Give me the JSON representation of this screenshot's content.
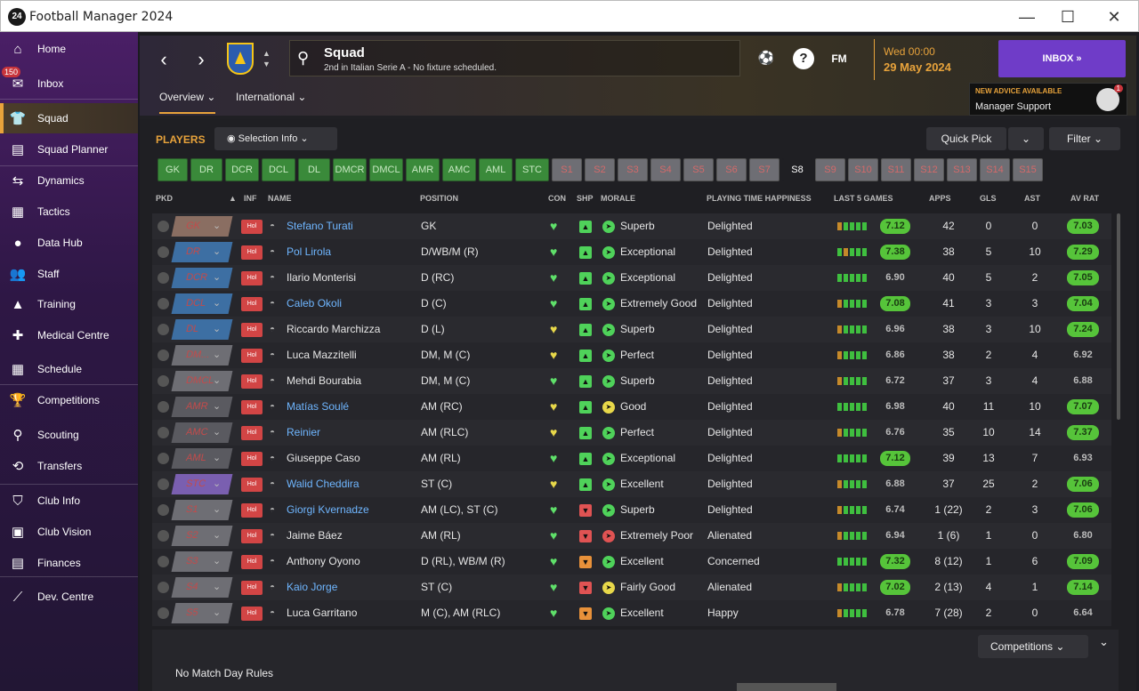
{
  "window": {
    "title": "Football Manager 2024",
    "logo": "24"
  },
  "sidebar": {
    "items": [
      {
        "label": "Home",
        "icon": "home-icon",
        "glyph": "⌂"
      },
      {
        "label": "Inbox",
        "icon": "inbox-icon",
        "glyph": "✉",
        "badge": "150"
      },
      {
        "label": "Squad",
        "icon": "shirt-icon",
        "glyph": "👕",
        "active": true
      },
      {
        "label": "Squad Planner",
        "icon": "clipboard-icon",
        "glyph": "▤"
      },
      {
        "label": "Dynamics",
        "icon": "dynamics-icon",
        "glyph": "⇆"
      },
      {
        "label": "Tactics",
        "icon": "tactics-icon",
        "glyph": "▦"
      },
      {
        "label": "Data Hub",
        "icon": "data-hub-icon",
        "glyph": "●"
      },
      {
        "label": "Staff",
        "icon": "staff-icon",
        "glyph": "👥"
      },
      {
        "label": "Training",
        "icon": "training-icon",
        "glyph": "▲"
      },
      {
        "label": "Medical Centre",
        "icon": "medical-icon",
        "glyph": "✚"
      },
      {
        "label": "Schedule",
        "icon": "calendar-icon",
        "glyph": "▦"
      },
      {
        "label": "Competitions",
        "icon": "trophy-icon",
        "glyph": "🏆"
      },
      {
        "label": "Scouting",
        "icon": "scouting-icon",
        "glyph": "⚲"
      },
      {
        "label": "Transfers",
        "icon": "transfers-icon",
        "glyph": "⟲"
      },
      {
        "label": "Club Info",
        "icon": "club-info-icon",
        "glyph": "⛉"
      },
      {
        "label": "Club Vision",
        "icon": "club-vision-icon",
        "glyph": "▣"
      },
      {
        "label": "Finances",
        "icon": "finances-icon",
        "glyph": "▤"
      },
      {
        "label": "Dev. Centre",
        "icon": "dev-centre-icon",
        "glyph": "⟋"
      }
    ]
  },
  "header": {
    "search_title": "Squad",
    "search_subtitle": "2nd in Italian Serie A - No fixture scheduled.",
    "date_time": "Wed 00:00",
    "date": "29 May 2024",
    "inbox_label": "INBOX",
    "advice_title": "NEW ADVICE AVAILABLE",
    "advice_sub": "Manager Support",
    "advice_count": "1",
    "fm_label": "FM",
    "tabs": [
      "Overview",
      "International"
    ]
  },
  "toolbar": {
    "players_label": "PLAYERS",
    "selection_info": "Selection Info",
    "quick_pick": "Quick Pick",
    "filter": "Filter"
  },
  "position_chips": [
    {
      "l": "GK",
      "t": "g"
    },
    {
      "l": "DR",
      "t": "g"
    },
    {
      "l": "DCR",
      "t": "g"
    },
    {
      "l": "DCL",
      "t": "g"
    },
    {
      "l": "DL",
      "t": "g"
    },
    {
      "l": "DMCR",
      "t": "g"
    },
    {
      "l": "DMCL",
      "t": "g"
    },
    {
      "l": "AMR",
      "t": "g"
    },
    {
      "l": "AMC",
      "t": "g"
    },
    {
      "l": "AML",
      "t": "g"
    },
    {
      "l": "STC",
      "t": "g"
    },
    {
      "l": "S1",
      "t": "r"
    },
    {
      "l": "S2",
      "t": "r"
    },
    {
      "l": "S3",
      "t": "r"
    },
    {
      "l": "S4",
      "t": "r"
    },
    {
      "l": "S5",
      "t": "r"
    },
    {
      "l": "S6",
      "t": "r"
    },
    {
      "l": "S7",
      "t": "r"
    },
    {
      "l": "S8",
      "t": "s8"
    },
    {
      "l": "S9",
      "t": "r"
    },
    {
      "l": "S10",
      "t": "r"
    },
    {
      "l": "S11",
      "t": "r"
    },
    {
      "l": "S12",
      "t": "r"
    },
    {
      "l": "S13",
      "t": "r"
    },
    {
      "l": "S14",
      "t": "r"
    },
    {
      "l": "S15",
      "t": "r"
    }
  ],
  "columns": {
    "pkd": "PKD",
    "inf": "INF",
    "name": "NAME",
    "position": "POSITION",
    "con": "CON",
    "shp": "SHP",
    "morale": "MORALE",
    "pth": "PLAYING TIME HAPPINESS",
    "l5": "LAST 5 GAMES",
    "apps": "APPS",
    "gls": "GLS",
    "ast": "AST",
    "avrat": "AV RAT"
  },
  "rows": [
    {
      "slot": "GK",
      "inf": "Hol",
      "name": "Stefano Turati",
      "link": true,
      "pos": "GK",
      "con": "g",
      "shp": "g",
      "mor": "Superb",
      "mi": "g",
      "pth": "Delighted",
      "l5": [
        "o",
        "g",
        "g",
        "g",
        "g"
      ],
      "l5r": "7.12",
      "l5h": true,
      "apps": "42",
      "gls": "0",
      "ast": "0",
      "av": "7.03",
      "avh": true
    },
    {
      "slot": "DR",
      "inf": "Hol",
      "name": "Pol Lirola",
      "link": true,
      "pos": "D/WB/M (R)",
      "con": "g",
      "shp": "g",
      "mor": "Exceptional",
      "mi": "g",
      "pth": "Delighted",
      "l5": [
        "g",
        "o",
        "g",
        "g",
        "g"
      ],
      "l5r": "7.38",
      "l5h": true,
      "apps": "38",
      "gls": "5",
      "ast": "10",
      "av": "7.29",
      "avh": true
    },
    {
      "slot": "DCR",
      "inf": "Hol",
      "name": "Ilario Monterisi",
      "link": false,
      "pos": "D (RC)",
      "con": "g",
      "shp": "g",
      "mor": "Exceptional",
      "mi": "g",
      "pth": "Delighted",
      "l5": [
        "g",
        "g",
        "g",
        "g",
        "g"
      ],
      "l5r": "6.90",
      "l5h": false,
      "apps": "40",
      "gls": "5",
      "ast": "2",
      "av": "7.05",
      "avh": true
    },
    {
      "slot": "DCL",
      "inf": "Hol",
      "name": "Caleb Okoli",
      "link": true,
      "pos": "D (C)",
      "con": "g",
      "shp": "g",
      "mor": "Extremely Good",
      "mi": "g",
      "pth": "Delighted",
      "l5": [
        "o",
        "g",
        "g",
        "g",
        "g"
      ],
      "l5r": "7.08",
      "l5h": true,
      "apps": "41",
      "gls": "3",
      "ast": "3",
      "av": "7.04",
      "avh": true
    },
    {
      "slot": "DL",
      "inf": "Hol",
      "name": "Riccardo Marchizza",
      "link": false,
      "pos": "D (L)",
      "con": "y",
      "shp": "g",
      "mor": "Superb",
      "mi": "g",
      "pth": "Delighted",
      "l5": [
        "o",
        "g",
        "g",
        "g",
        "g"
      ],
      "l5r": "6.96",
      "l5h": false,
      "apps": "38",
      "gls": "3",
      "ast": "10",
      "av": "7.24",
      "avh": true
    },
    {
      "slot": "DM...",
      "inf": "Hol",
      "name": "Luca Mazzitelli",
      "link": false,
      "pos": "DM, M (C)",
      "con": "y",
      "shp": "g",
      "mor": "Perfect",
      "mi": "g",
      "pth": "Delighted",
      "l5": [
        "o",
        "g",
        "g",
        "g",
        "g"
      ],
      "l5r": "6.86",
      "l5h": false,
      "apps": "38",
      "gls": "2",
      "ast": "4",
      "av": "6.92",
      "avh": false
    },
    {
      "slot": "DMCL",
      "inf": "Hol",
      "name": "Mehdi Bourabia",
      "link": false,
      "pos": "DM, M (C)",
      "con": "g",
      "shp": "g",
      "mor": "Superb",
      "mi": "g",
      "pth": "Delighted",
      "l5": [
        "o",
        "g",
        "g",
        "g",
        "g"
      ],
      "l5r": "6.72",
      "l5h": false,
      "apps": "37",
      "gls": "3",
      "ast": "4",
      "av": "6.88",
      "avh": false
    },
    {
      "slot": "AMR",
      "inf": "Hol",
      "name": "Matías Soulé",
      "link": true,
      "pos": "AM (RC)",
      "con": "y",
      "shp": "g",
      "mor": "Good",
      "mi": "y",
      "pth": "Delighted",
      "l5": [
        "g",
        "g",
        "g",
        "g",
        "g"
      ],
      "l5r": "6.98",
      "l5h": false,
      "apps": "40",
      "gls": "11",
      "ast": "10",
      "av": "7.07",
      "avh": true
    },
    {
      "slot": "AMC",
      "inf": "Hol",
      "name": "Reinier",
      "link": true,
      "pos": "AM (RLC)",
      "con": "y",
      "shp": "g",
      "mor": "Perfect",
      "mi": "g",
      "pth": "Delighted",
      "l5": [
        "o",
        "g",
        "g",
        "g",
        "g"
      ],
      "l5r": "6.76",
      "l5h": false,
      "apps": "35",
      "gls": "10",
      "ast": "14",
      "av": "7.37",
      "avh": true
    },
    {
      "slot": "AML",
      "inf": "Hol",
      "name": "Giuseppe Caso",
      "link": false,
      "pos": "AM (RL)",
      "con": "g",
      "shp": "g",
      "mor": "Exceptional",
      "mi": "g",
      "pth": "Delighted",
      "l5": [
        "g",
        "g",
        "g",
        "g",
        "g"
      ],
      "l5r": "7.12",
      "l5h": true,
      "apps": "39",
      "gls": "13",
      "ast": "7",
      "av": "6.93",
      "avh": false
    },
    {
      "slot": "STC",
      "inf": "Hol",
      "name": "Walid Cheddira",
      "link": true,
      "pos": "ST (C)",
      "con": "y",
      "shp": "g",
      "mor": "Excellent",
      "mi": "g",
      "pth": "Delighted",
      "l5": [
        "o",
        "g",
        "g",
        "g",
        "g"
      ],
      "l5r": "6.88",
      "l5h": false,
      "apps": "37",
      "gls": "25",
      "ast": "2",
      "av": "7.06",
      "avh": true
    },
    {
      "slot": "S1",
      "inf": "Hol",
      "name": "Giorgi Kvernadze",
      "link": true,
      "pos": "AM (LC), ST (C)",
      "con": "g",
      "shp": "r",
      "mor": "Superb",
      "mi": "g",
      "pth": "Delighted",
      "l5": [
        "o",
        "g",
        "g",
        "g",
        "g"
      ],
      "l5r": "6.74",
      "l5h": false,
      "apps": "1 (22)",
      "gls": "2",
      "ast": "3",
      "av": "7.06",
      "avh": true
    },
    {
      "slot": "S2",
      "inf": "Hol",
      "name": "Jaime Báez",
      "link": false,
      "pos": "AM (RL)",
      "con": "g",
      "shp": "r",
      "mor": "Extremely Poor",
      "mi": "r",
      "pth": "Alienated",
      "l5": [
        "o",
        "g",
        "g",
        "g",
        "g"
      ],
      "l5r": "6.94",
      "l5h": false,
      "apps": "1 (6)",
      "gls": "1",
      "ast": "0",
      "av": "6.80",
      "avh": false
    },
    {
      "slot": "S3",
      "inf": "Hol",
      "name": "Anthony Oyono",
      "link": false,
      "pos": "D (RL), WB/M (R)",
      "con": "g",
      "shp": "o",
      "mor": "Excellent",
      "mi": "g",
      "pth": "Concerned",
      "l5": [
        "g",
        "g",
        "g",
        "g",
        "g"
      ],
      "l5r": "7.32",
      "l5h": true,
      "apps": "8 (12)",
      "gls": "1",
      "ast": "6",
      "av": "7.09",
      "avh": true
    },
    {
      "slot": "S4",
      "inf": "Hol",
      "name": "Kaio Jorge",
      "link": true,
      "pos": "ST (C)",
      "con": "g",
      "shp": "r",
      "mor": "Fairly Good",
      "mi": "y",
      "pth": "Alienated",
      "l5": [
        "o",
        "g",
        "g",
        "g",
        "g"
      ],
      "l5r": "7.02",
      "l5h": true,
      "apps": "2 (13)",
      "gls": "4",
      "ast": "1",
      "av": "7.14",
      "avh": true
    },
    {
      "slot": "S5",
      "inf": "Hol",
      "name": "Luca Garritano",
      "link": false,
      "pos": "M (C), AM (RLC)",
      "con": "g",
      "shp": "o",
      "mor": "Excellent",
      "mi": "g",
      "pth": "Happy",
      "l5": [
        "o",
        "g",
        "g",
        "g",
        "g"
      ],
      "l5r": "6.78",
      "l5h": false,
      "apps": "7 (28)",
      "gls": "2",
      "ast": "0",
      "av": "6.64",
      "avh": false
    }
  ],
  "footer": {
    "competitions": "Competitions",
    "no_match_day": "No Match Day Rules"
  },
  "colors": {
    "accent": "#e8a33b",
    "inbox": "#6f3cc8",
    "good": "#56c43a",
    "bad": "#d24545"
  }
}
